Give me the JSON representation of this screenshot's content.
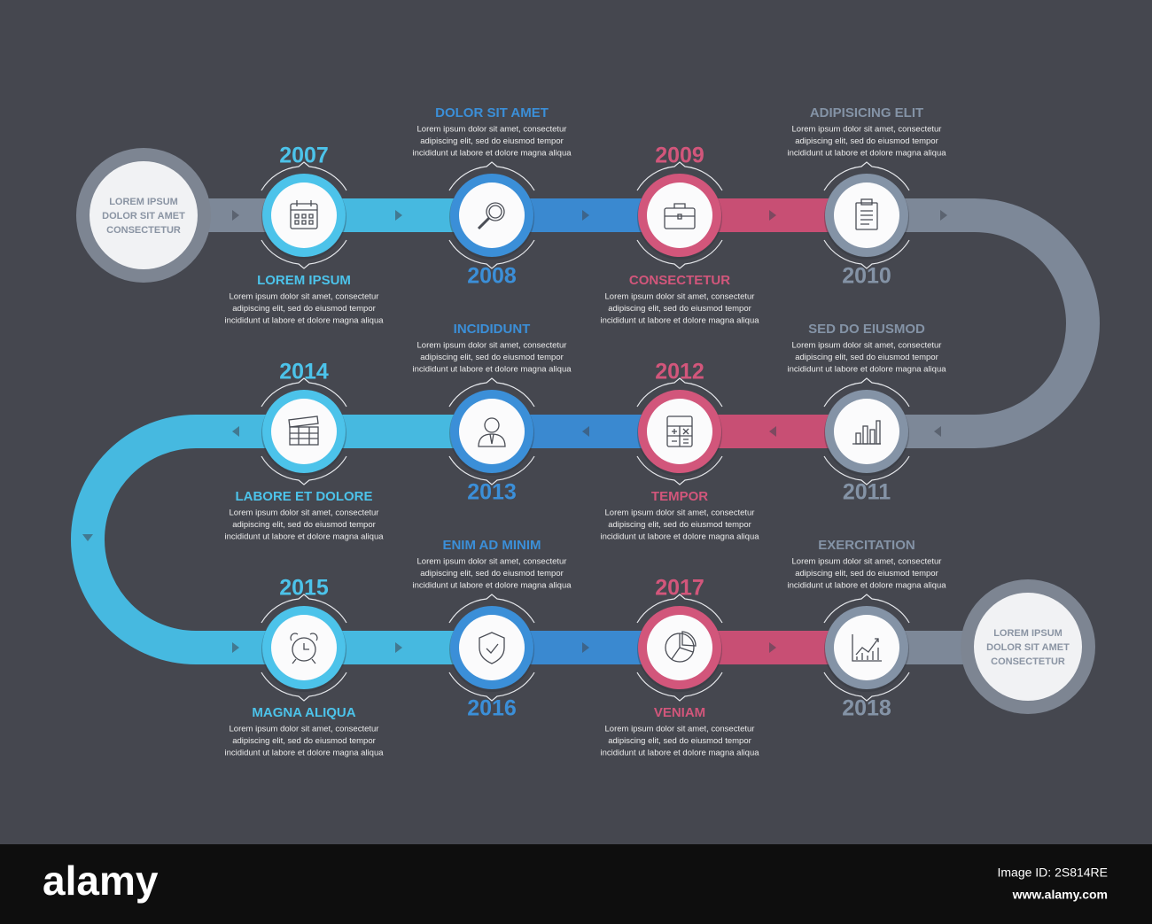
{
  "start_label": [
    "LOREM IPSUM",
    "DOLOR SIT AMET",
    "CONSECTETUR"
  ],
  "end_label": [
    "LOREM IPSUM",
    "DOLOR SIT AMET",
    "CONSECTETUR"
  ],
  "nodes": [
    {
      "year": "2007",
      "title": "LOREM IPSUM",
      "color": "#4cc3ea",
      "description": [
        "Lorem ipsum dolor sit amet, consectetur",
        "adipiscing elit, sed do eiusmod tempor",
        "incididunt ut labore et dolore magna aliqua"
      ]
    },
    {
      "year": "2008",
      "title": "DOLOR SIT AMET",
      "color": "#3b8fd8",
      "description": [
        "Lorem ipsum dolor sit amet, consectetur",
        "adipiscing elit, sed do eiusmod tempor",
        "incididunt ut labore et dolore magna aliqua"
      ]
    },
    {
      "year": "2009",
      "title": "CONSECTETUR",
      "color": "#d2567b",
      "description": [
        "Lorem ipsum dolor sit amet, consectetur",
        "adipiscing elit, sed do eiusmod tempor",
        "incididunt ut labore et dolore magna aliqua"
      ]
    },
    {
      "year": "2010",
      "title": "ADIPISICING ELIT",
      "color": "#8493a6",
      "description": [
        "Lorem ipsum dolor sit amet, consectetur",
        "adipiscing elit, sed do eiusmod tempor",
        "incididunt ut labore et dolore magna aliqua"
      ]
    },
    {
      "year": "2011",
      "title": "SED DO EIUSMOD",
      "color": "#8493a6",
      "description": [
        "Lorem ipsum dolor sit amet, consectetur",
        "adipiscing elit, sed do eiusmod tempor",
        "incididunt ut labore et dolore magna aliqua"
      ]
    },
    {
      "year": "2012",
      "title": "TEMPOR",
      "color": "#d2567b",
      "description": [
        "Lorem ipsum dolor sit amet, consectetur",
        "adipiscing elit, sed do eiusmod tempor",
        "incididunt ut labore et dolore magna aliqua"
      ]
    },
    {
      "year": "2013",
      "title": "INCIDIDUNT",
      "color": "#3b8fd8",
      "description": [
        "Lorem ipsum dolor sit amet, consectetur",
        "adipiscing elit, sed do eiusmod tempor",
        "incididunt ut labore et dolore magna aliqua"
      ]
    },
    {
      "year": "2014",
      "title": "LABORE ET DOLORE",
      "color": "#4cc3ea",
      "description": [
        "Lorem ipsum dolor sit amet, consectetur",
        "adipiscing elit, sed do eiusmod tempor",
        "incididunt ut labore et dolore magna aliqua"
      ]
    },
    {
      "year": "2015",
      "title": "MAGNA ALIQUA",
      "color": "#4cc3ea",
      "description": [
        "Lorem ipsum dolor sit amet, consectetur",
        "adipiscing elit, sed do eiusmod tempor",
        "incididunt ut labore et dolore magna aliqua"
      ]
    },
    {
      "year": "2016",
      "title": "ENIM AD MINIM",
      "color": "#3b8fd8",
      "description": [
        "Lorem ipsum dolor sit amet, consectetur",
        "adipiscing elit, sed do eiusmod tempor",
        "incididunt ut labore et dolore magna aliqua"
      ]
    },
    {
      "year": "2017",
      "title": "VENIAM",
      "color": "#d2567b",
      "description": [
        "Lorem ipsum dolor sit amet, consectetur",
        "adipiscing elit, sed do eiusmod tempor",
        "incididunt ut labore et dolore magna aliqua"
      ]
    },
    {
      "year": "2018",
      "title": "EXERCITATION",
      "color": "#8493a6",
      "description": [
        "Lorem ipsum dolor sit amet, consectetur",
        "adipiscing elit, sed do eiusmod tempor",
        "incididunt ut labore et dolore magna aliqua"
      ]
    }
  ],
  "footer": {
    "brand": "alamy",
    "image_id": "Image ID: 2S814RE",
    "url": "www.alamy.com"
  }
}
